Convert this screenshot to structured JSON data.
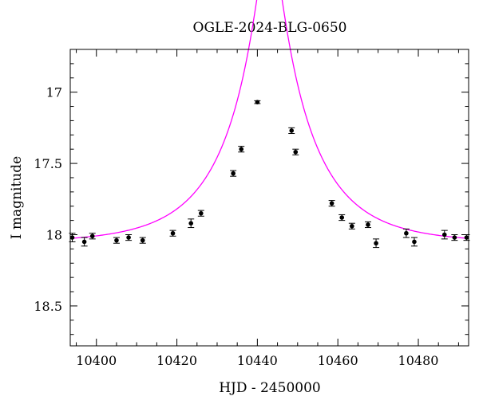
{
  "chart_data": {
    "type": "scatter",
    "title": "OGLE-2024-BLG-0650",
    "xlabel": "HJD - 2450000",
    "ylabel": "I magnitude",
    "xlim": [
      10393.5,
      10492.5
    ],
    "ylim": [
      18.78,
      16.7
    ],
    "y_inverted": true,
    "x_ticks": [
      10400,
      10420,
      10440,
      10460,
      10480
    ],
    "y_ticks": [
      17,
      17.5,
      18,
      18.5
    ],
    "x_tick_labels": [
      "10400",
      "10420",
      "10440",
      "10460",
      "10480"
    ],
    "y_tick_labels": [
      "17",
      "17.5",
      "18",
      "18.5"
    ],
    "grid": false,
    "series": [
      {
        "kind": "points_with_errorbars",
        "color": "#000000",
        "points": [
          {
            "x": 10394.0,
            "y": 18.02,
            "err": 0.03
          },
          {
            "x": 10397.0,
            "y": 18.05,
            "err": 0.03
          },
          {
            "x": 10399.0,
            "y": 18.01,
            "err": 0.02
          },
          {
            "x": 10405.0,
            "y": 18.04,
            "err": 0.02
          },
          {
            "x": 10408.0,
            "y": 18.02,
            "err": 0.02
          },
          {
            "x": 10411.5,
            "y": 18.04,
            "err": 0.02
          },
          {
            "x": 10419.0,
            "y": 17.99,
            "err": 0.02
          },
          {
            "x": 10423.5,
            "y": 17.92,
            "err": 0.03
          },
          {
            "x": 10426.0,
            "y": 17.85,
            "err": 0.02
          },
          {
            "x": 10434.0,
            "y": 17.57,
            "err": 0.02
          },
          {
            "x": 10436.0,
            "y": 17.4,
            "err": 0.02
          },
          {
            "x": 10440.0,
            "y": 17.07,
            "err": 0.01
          },
          {
            "x": 10448.5,
            "y": 17.27,
            "err": 0.02
          },
          {
            "x": 10449.5,
            "y": 17.42,
            "err": 0.02
          },
          {
            "x": 10458.5,
            "y": 17.78,
            "err": 0.02
          },
          {
            "x": 10461.0,
            "y": 17.88,
            "err": 0.02
          },
          {
            "x": 10463.5,
            "y": 17.94,
            "err": 0.02
          },
          {
            "x": 10467.5,
            "y": 17.93,
            "err": 0.02
          },
          {
            "x": 10469.5,
            "y": 18.06,
            "err": 0.03
          },
          {
            "x": 10477.0,
            "y": 17.99,
            "err": 0.03
          },
          {
            "x": 10479.0,
            "y": 18.05,
            "err": 0.03
          },
          {
            "x": 10486.5,
            "y": 18.0,
            "err": 0.03
          },
          {
            "x": 10489.0,
            "y": 18.02,
            "err": 0.02
          },
          {
            "x": 10492.0,
            "y": 18.02,
            "err": 0.02
          }
        ]
      },
      {
        "kind": "model_curve",
        "color": "#ff00ff",
        "model": {
          "type": "point_lens",
          "t0": 10443.0,
          "tE": 20.0,
          "u0": 0.14,
          "baseline_mag": 18.06
        }
      }
    ]
  }
}
